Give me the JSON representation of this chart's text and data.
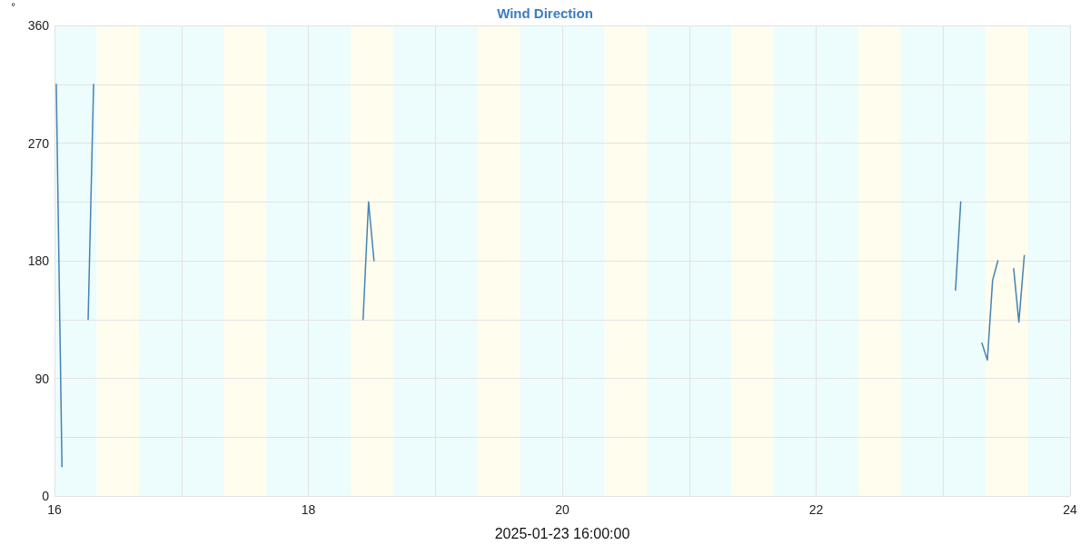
{
  "chart_data": {
    "type": "line",
    "title": "Wind Direction",
    "xlabel": "2025-01-23 16:00:00",
    "ylabel": "°",
    "x": [
      16.014,
      16.059,
      16.15,
      16.265,
      16.308,
      17.4,
      18.431,
      18.474,
      18.517,
      20.8,
      23.098,
      23.139,
      23.22,
      23.306,
      23.349,
      23.39,
      23.432,
      23.49,
      23.556,
      23.597,
      23.64
    ],
    "series": [
      {
        "color": "#4682b4",
        "values": [
          315,
          22.5,
          null,
          135,
          315,
          null,
          135,
          225,
          180,
          null,
          157.5,
          225,
          null,
          117,
          104,
          165,
          180,
          null,
          174,
          133,
          184
        ]
      }
    ],
    "xlim": [
      16,
      24
    ],
    "xticks": [
      16,
      {
        "value": 17,
        "label": null
      },
      18,
      {
        "value": 19,
        "label": null
      },
      20,
      {
        "value": 21,
        "label": null
      },
      22,
      {
        "value": 23,
        "label": null
      },
      24
    ],
    "ylim": [
      0,
      360
    ],
    "yticks": [
      0,
      {
        "value": 45,
        "label": null
      },
      90,
      {
        "value": 135,
        "label": null
      },
      180,
      {
        "value": 225,
        "label": null
      },
      270,
      {
        "value": 315,
        "label": null
      },
      360
    ],
    "grid": true,
    "marker": "none",
    "line_style": "solid",
    "bands": [
      {
        "axis": "x",
        "from": 16,
        "to": 16.333,
        "color": "#edfcfc"
      },
      {
        "axis": "x",
        "from": 16.333,
        "to": 16.667,
        "color": "#fefdee"
      },
      {
        "axis": "x",
        "from": 16.667,
        "to": 17.333,
        "color": "#edfcfc"
      },
      {
        "axis": "x",
        "from": 17.333,
        "to": 17.667,
        "color": "#fefdee"
      },
      {
        "axis": "x",
        "from": 17.667,
        "to": 18.333,
        "color": "#edfcfc"
      },
      {
        "axis": "x",
        "from": 18.333,
        "to": 18.667,
        "color": "#fefdee"
      },
      {
        "axis": "x",
        "from": 18.667,
        "to": 19.333,
        "color": "#edfcfc"
      },
      {
        "axis": "x",
        "from": 19.333,
        "to": 19.667,
        "color": "#fefdee"
      },
      {
        "axis": "x",
        "from": 19.667,
        "to": 20.333,
        "color": "#edfcfc"
      },
      {
        "axis": "x",
        "from": 20.333,
        "to": 20.667,
        "color": "#fefdee"
      },
      {
        "axis": "x",
        "from": 20.667,
        "to": 21.333,
        "color": "#edfcfc"
      },
      {
        "axis": "x",
        "from": 21.333,
        "to": 21.667,
        "color": "#fefdee"
      },
      {
        "axis": "x",
        "from": 21.667,
        "to": 22.333,
        "color": "#edfcfc"
      },
      {
        "axis": "x",
        "from": 22.333,
        "to": 22.667,
        "color": "#fefdee"
      },
      {
        "axis": "x",
        "from": 22.667,
        "to": 23.333,
        "color": "#edfcfc"
      },
      {
        "axis": "x",
        "from": 23.333,
        "to": 23.667,
        "color": "#fefdee"
      },
      {
        "axis": "x",
        "from": 23.667,
        "to": 24,
        "color": "#edfcfc"
      }
    ]
  }
}
